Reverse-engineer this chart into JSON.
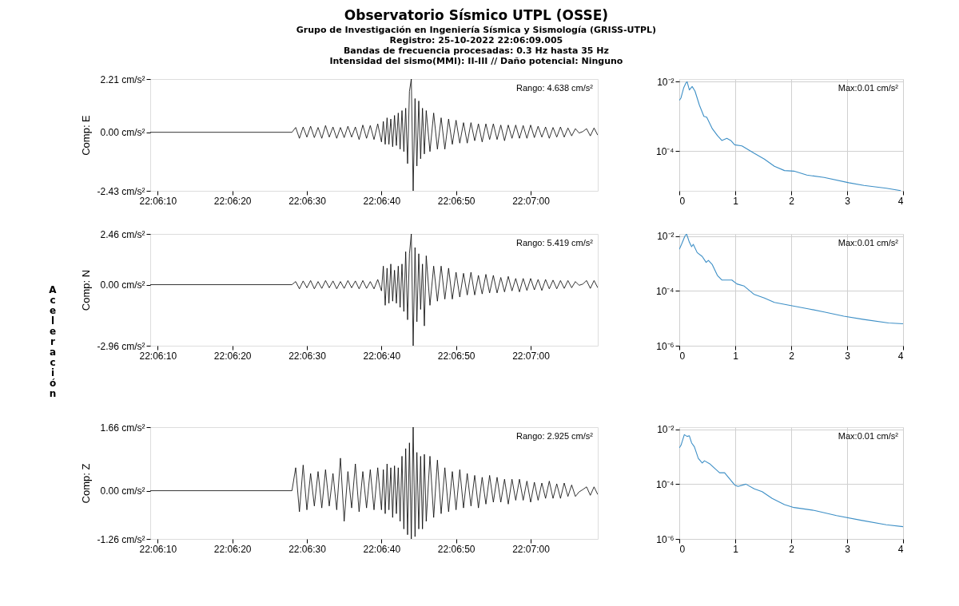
{
  "chart_data": [
    {
      "type": "line",
      "title": "Observatorio Sísmico UTPL (OSSE)",
      "subtitle": "Grupo de Investigación en Ingeniería Sísmica y Sismología (GRISS-UTPL)\nRegistro: 25-10-2022 22:06:09.005\nBandas de frecuencia procesadas: 0.3 Hz hasta 35 Hz\nIntensidad del sismo(MMI): II-III // Daño potencial: Ninguno",
      "ylabel": "Comp: E",
      "x": [
        "2022-10-25T22:06:09",
        "2022-10-25T22:06:28",
        "2022-10-25T22:06:28.5",
        "2022-10-25T22:06:29",
        "2022-10-25T22:06:29.5",
        "2022-10-25T22:06:30",
        "2022-10-25T22:06:30.5",
        "2022-10-25T22:06:31",
        "2022-10-25T22:06:31.5",
        "2022-10-25T22:06:32",
        "2022-10-25T22:06:32.5",
        "2022-10-25T22:06:33",
        "2022-10-25T22:06:33.5",
        "2022-10-25T22:06:34",
        "2022-10-25T22:06:34.5",
        "2022-10-25T22:06:35",
        "2022-10-25T22:06:35.5",
        "2022-10-25T22:06:36",
        "2022-10-25T22:06:36.5",
        "2022-10-25T22:06:37",
        "2022-10-25T22:06:37.5",
        "2022-10-25T22:06:38",
        "2022-10-25T22:06:38.5",
        "2022-10-25T22:06:39",
        "2022-10-25T22:06:39.5",
        "2022-10-25T22:06:40",
        "2022-10-25T22:06:40.25",
        "2022-10-25T22:06:40.5",
        "2022-10-25T22:06:40.75",
        "2022-10-25T22:06:41",
        "2022-10-25T22:06:41.25",
        "2022-10-25T22:06:41.5",
        "2022-10-25T22:06:41.75",
        "2022-10-25T22:06:42",
        "2022-10-25T22:06:42.25",
        "2022-10-25T22:06:42.5",
        "2022-10-25T22:06:42.75",
        "2022-10-25T22:06:43",
        "2022-10-25T22:06:43.25",
        "2022-10-25T22:06:43.5",
        "2022-10-25T22:06:43.75",
        "2022-10-25T22:06:44",
        "2022-10-25T22:06:44.25",
        "2022-10-25T22:06:44.5",
        "2022-10-25T22:06:44.75",
        "2022-10-25T22:06:45",
        "2022-10-25T22:06:45.25",
        "2022-10-25T22:06:45.5",
        "2022-10-25T22:06:45.75",
        "2022-10-25T22:06:46",
        "2022-10-25T22:06:46.5",
        "2022-10-25T22:06:47",
        "2022-10-25T22:06:47.5",
        "2022-10-25T22:06:48",
        "2022-10-25T22:06:48.5",
        "2022-10-25T22:06:49",
        "2022-10-25T22:06:49.5",
        "2022-10-25T22:06:50",
        "2022-10-25T22:06:50.5",
        "2022-10-25T22:06:51",
        "2022-10-25T22:06:51.5",
        "2022-10-25T22:06:52",
        "2022-10-25T22:06:52.5",
        "2022-10-25T22:06:53",
        "2022-10-25T22:06:53.5",
        "2022-10-25T22:06:54",
        "2022-10-25T22:06:54.5",
        "2022-10-25T22:06:55",
        "2022-10-25T22:06:55.5",
        "2022-10-25T22:06:56",
        "2022-10-25T22:06:56.5",
        "2022-10-25T22:06:57",
        "2022-10-25T22:06:57.5",
        "2022-10-25T22:06:58",
        "2022-10-25T22:06:58.5",
        "2022-10-25T22:06:59",
        "2022-10-25T22:06:59.5",
        "2022-10-25T22:07:00",
        "2022-10-25T22:07:00.5",
        "2022-10-25T22:07:01",
        "2022-10-25T22:07:01.5",
        "2022-10-25T22:07:02",
        "2022-10-25T22:07:02.5",
        "2022-10-25T22:07:03",
        "2022-10-25T22:07:03.5",
        "2022-10-25T22:07:04",
        "2022-10-25T22:07:04.5",
        "2022-10-25T22:07:05",
        "2022-10-25T22:07:05.5",
        "2022-10-25T22:07:06",
        "2022-10-25T22:07:06.5",
        "2022-10-25T22:07:07",
        "2022-10-25T22:07:07.5",
        "2022-10-25T22:07:08",
        "2022-10-25T22:07:08.5",
        "2022-10-25T22:07:09"
      ],
      "xlim": [
        "2022-10-25T22:06:09",
        "2022-10-25T22:07:09"
      ],
      "xticks": [
        {
          "value": "2022-10-25T22:06:10",
          "label": "22:06:10"
        },
        {
          "value": "2022-10-25T22:06:20",
          "label": "22:06:20"
        },
        {
          "value": "2022-10-25T22:06:30",
          "label": "22:06:30"
        },
        {
          "value": "2022-10-25T22:06:40",
          "label": "22:06:40"
        },
        {
          "value": "2022-10-25T22:06:50",
          "label": "22:06:50"
        },
        {
          "value": "2022-10-25T22:07:00",
          "label": "22:07:00"
        }
      ],
      "ylim": [
        -2.43,
        2.21
      ],
      "yticks": [
        {
          "value": -2.43,
          "label": "-2.43 cm/s²"
        },
        {
          "value": 0,
          "label": "0.00 cm/s²"
        },
        {
          "value": 2.21,
          "label": "2.21 cm/s²"
        }
      ],
      "series": [
        {
          "color": "#000000",
          "values": [
            0,
            0,
            0.2,
            -0.25,
            0.22,
            -0.2,
            0.25,
            -0.22,
            0.2,
            -0.25,
            0.28,
            -0.2,
            0.22,
            -0.25,
            0.2,
            -0.22,
            0.25,
            -0.2,
            0.22,
            -0.3,
            0.3,
            -0.25,
            0.28,
            -0.3,
            0.35,
            -0.4,
            0.45,
            -0.5,
            0.6,
            -0.5,
            0.55,
            -0.6,
            0.7,
            -0.55,
            0.8,
            -0.7,
            0.9,
            -0.8,
            1.0,
            -1.3,
            1.7,
            2.21,
            -2.43,
            1.4,
            -1.4,
            1.3,
            -1.1,
            1.0,
            -0.9,
            0.9,
            -0.8,
            0.8,
            -0.7,
            0.6,
            -0.7,
            0.55,
            -0.5,
            0.5,
            -0.45,
            0.4,
            -0.45,
            0.4,
            -0.35,
            0.35,
            -0.4,
            0.35,
            -0.3,
            0.35,
            -0.3,
            0.3,
            -0.35,
            0.3,
            -0.25,
            0.3,
            -0.25,
            0.28,
            -0.25,
            0.3,
            -0.22,
            0.25,
            -0.2,
            0.22,
            -0.25,
            0.2,
            -0.2,
            0.22,
            -0.2,
            0.18,
            -0.15,
            0.15,
            -0.03,
            0.03,
            0.15,
            -0.15,
            0.18,
            -0.12
          ]
        }
      ],
      "annotations": [
        "Rango: 4.638 cm/s²"
      ]
    },
    {
      "type": "line",
      "x": [
        0,
        0.03,
        0.08,
        0.12,
        0.14,
        0.18,
        0.23,
        0.28,
        0.36,
        0.44,
        0.49,
        0.59,
        0.68,
        0.76,
        0.85,
        0.92,
        0.99,
        1.12,
        1.34,
        1.52,
        1.7,
        1.88,
        2.05,
        2.28,
        2.59,
        3.03,
        3.3,
        3.7,
        3.96
      ],
      "xlim": [
        0,
        4
      ],
      "xticks": [
        0,
        1,
        2,
        3,
        4
      ],
      "ylim": [
        7e-06,
        0.012
      ],
      "yticks": [
        {
          "value": 0.01,
          "label": "10⁻²"
        },
        {
          "value": 0.0001,
          "label": "10⁻⁴"
        }
      ],
      "log": true,
      "grid": true,
      "series": [
        {
          "color": "#3d8fc6",
          "values": [
            0.0029,
            0.0034,
            0.0068,
            0.0093,
            0.01,
            0.0058,
            0.0073,
            0.0054,
            0.0021,
            0.001,
            0.00095,
            0.00044,
            0.00028,
            0.0002,
            0.00023,
            0.0002,
            0.00015,
            0.00014,
            8.5e-05,
            5.8e-05,
            3.6e-05,
            2.7e-05,
            2.6e-05,
            2e-05,
            1.7e-05,
            1.2e-05,
            1e-05,
            8.3e-06,
            7.1e-06
          ]
        }
      ],
      "annotations": [
        "Max:0.01 cm/s²"
      ]
    },
    {
      "type": "line",
      "ylabel": "Comp: N",
      "x": [
        "2022-10-25T22:06:09",
        "2022-10-25T22:06:28",
        "2022-10-25T22:06:28.5",
        "2022-10-25T22:06:29",
        "2022-10-25T22:06:29.5",
        "2022-10-25T22:06:30",
        "2022-10-25T22:06:30.5",
        "2022-10-25T22:06:31",
        "2022-10-25T22:06:31.5",
        "2022-10-25T22:06:32",
        "2022-10-25T22:06:32.5",
        "2022-10-25T22:06:33",
        "2022-10-25T22:06:33.5",
        "2022-10-25T22:06:34",
        "2022-10-25T22:06:34.5",
        "2022-10-25T22:06:35",
        "2022-10-25T22:06:35.5",
        "2022-10-25T22:06:36",
        "2022-10-25T22:06:36.5",
        "2022-10-25T22:06:37",
        "2022-10-25T22:06:37.5",
        "2022-10-25T22:06:38",
        "2022-10-25T22:06:38.5",
        "2022-10-25T22:06:39",
        "2022-10-25T22:06:39.5",
        "2022-10-25T22:06:40",
        "2022-10-25T22:06:40.25",
        "2022-10-25T22:06:40.5",
        "2022-10-25T22:06:40.75",
        "2022-10-25T22:06:41",
        "2022-10-25T22:06:41.25",
        "2022-10-25T22:06:41.5",
        "2022-10-25T22:06:41.75",
        "2022-10-25T22:06:42",
        "2022-10-25T22:06:42.25",
        "2022-10-25T22:06:42.5",
        "2022-10-25T22:06:42.75",
        "2022-10-25T22:06:43",
        "2022-10-25T22:06:43.25",
        "2022-10-25T22:06:43.5",
        "2022-10-25T22:06:43.75",
        "2022-10-25T22:06:44",
        "2022-10-25T22:06:44.25",
        "2022-10-25T22:06:44.5",
        "2022-10-25T22:06:44.75",
        "2022-10-25T22:06:45",
        "2022-10-25T22:06:45.25",
        "2022-10-25T22:06:45.5",
        "2022-10-25T22:06:45.75",
        "2022-10-25T22:06:46",
        "2022-10-25T22:06:46.5",
        "2022-10-25T22:06:47",
        "2022-10-25T22:06:47.5",
        "2022-10-25T22:06:48",
        "2022-10-25T22:06:48.5",
        "2022-10-25T22:06:49",
        "2022-10-25T22:06:49.5",
        "2022-10-25T22:06:50",
        "2022-10-25T22:06:50.5",
        "2022-10-25T22:06:51",
        "2022-10-25T22:06:51.5",
        "2022-10-25T22:06:52",
        "2022-10-25T22:06:52.5",
        "2022-10-25T22:06:53",
        "2022-10-25T22:06:53.5",
        "2022-10-25T22:06:54",
        "2022-10-25T22:06:54.5",
        "2022-10-25T22:06:55",
        "2022-10-25T22:06:55.5",
        "2022-10-25T22:06:56",
        "2022-10-25T22:06:56.5",
        "2022-10-25T22:06:57",
        "2022-10-25T22:06:57.5",
        "2022-10-25T22:06:58",
        "2022-10-25T22:06:58.5",
        "2022-10-25T22:06:59",
        "2022-10-25T22:06:59.5",
        "2022-10-25T22:07:00",
        "2022-10-25T22:07:00.5",
        "2022-10-25T22:07:01",
        "2022-10-25T22:07:01.5",
        "2022-10-25T22:07:02",
        "2022-10-25T22:07:02.5",
        "2022-10-25T22:07:03",
        "2022-10-25T22:07:03.5",
        "2022-10-25T22:07:04",
        "2022-10-25T22:07:04.5",
        "2022-10-25T22:07:05",
        "2022-10-25T22:07:05.5",
        "2022-10-25T22:07:06",
        "2022-10-25T22:07:06.5",
        "2022-10-25T22:07:07",
        "2022-10-25T22:07:07.5",
        "2022-10-25T22:07:08",
        "2022-10-25T22:07:08.5",
        "2022-10-25T22:07:09"
      ],
      "xlim": [
        "2022-10-25T22:06:09",
        "2022-10-25T22:07:09"
      ],
      "xticks": [
        {
          "value": "2022-10-25T22:06:10",
          "label": "22:06:10"
        },
        {
          "value": "2022-10-25T22:06:20",
          "label": "22:06:20"
        },
        {
          "value": "2022-10-25T22:06:30",
          "label": "22:06:30"
        },
        {
          "value": "2022-10-25T22:06:40",
          "label": "22:06:40"
        },
        {
          "value": "2022-10-25T22:06:50",
          "label": "22:06:50"
        },
        {
          "value": "2022-10-25T22:07:00",
          "label": "22:07:00"
        }
      ],
      "ylim": [
        -2.96,
        2.46
      ],
      "yticks": [
        {
          "value": -2.96,
          "label": "-2.96 cm/s²"
        },
        {
          "value": 0,
          "label": "0.00 cm/s²"
        },
        {
          "value": 2.46,
          "label": "2.46 cm/s²"
        }
      ],
      "series": [
        {
          "color": "#000000",
          "values": [
            0,
            0,
            0.15,
            -0.2,
            0.18,
            -0.15,
            0.2,
            -0.2,
            0.15,
            -0.18,
            0.2,
            -0.15,
            0.18,
            -0.2,
            0.15,
            -0.18,
            0.2,
            -0.15,
            0.18,
            -0.2,
            0.2,
            -0.18,
            0.15,
            -0.2,
            0.25,
            -0.3,
            0.9,
            -1.0,
            0.8,
            -0.9,
            1.0,
            -0.8,
            0.7,
            -0.9,
            0.9,
            -1.1,
            1.0,
            -1.3,
            1.6,
            -1.7,
            1.5,
            2.46,
            -2.96,
            1.8,
            -1.8,
            1.5,
            -1.2,
            1.0,
            -2.0,
            1.4,
            -1.0,
            0.9,
            -0.8,
            0.9,
            -0.7,
            0.8,
            -0.7,
            0.6,
            -0.6,
            0.55,
            -0.5,
            0.6,
            -0.5,
            0.45,
            -0.45,
            0.5,
            -0.4,
            0.45,
            -0.4,
            0.35,
            -0.35,
            0.4,
            -0.3,
            0.3,
            -0.35,
            0.3,
            -0.28,
            0.3,
            -0.25,
            0.25,
            -0.28,
            0.25,
            -0.2,
            0.22,
            -0.2,
            0.2,
            -0.18,
            0.2,
            -0.15,
            0.15,
            -0.03,
            0.03,
            0.2,
            -0.18,
            0.2,
            -0.15
          ]
        }
      ],
      "annotations": [
        "Rango: 5.419 cm/s²",
        "Aceleración"
      ]
    },
    {
      "type": "line",
      "x": [
        0,
        0.04,
        0.1,
        0.13,
        0.18,
        0.22,
        0.25,
        0.32,
        0.41,
        0.48,
        0.52,
        0.59,
        0.68,
        0.76,
        0.94,
        1.03,
        1.16,
        1.34,
        1.52,
        1.7,
        1.96,
        2.32,
        2.59,
        2.94,
        3.3,
        3.74,
        4.0
      ],
      "xlim": [
        0,
        4
      ],
      "xticks": [
        0,
        1,
        2,
        3,
        4
      ],
      "ylim": [
        1e-06,
        0.012
      ],
      "yticks": [
        {
          "value": 0.01,
          "label": "10⁻²"
        },
        {
          "value": 0.0001,
          "label": "10⁻⁴"
        },
        {
          "value": 1e-06,
          "label": "10⁻⁶"
        }
      ],
      "log": true,
      "grid": true,
      "series": [
        {
          "color": "#3d8fc6",
          "values": [
            0.0033,
            0.005,
            0.01,
            0.012,
            0.006,
            0.0041,
            0.005,
            0.0025,
            0.0018,
            0.0011,
            0.0013,
            0.00091,
            0.00037,
            0.00025,
            0.00025,
            0.00018,
            0.00015,
            7.4e-05,
            5.5e-05,
            3.8e-05,
            3e-05,
            2.2e-05,
            1.7e-05,
            1.2e-05,
            9.1e-06,
            6.8e-06,
            6.3e-06
          ]
        }
      ],
      "annotations": [
        "Max:0.01 cm/s²"
      ]
    },
    {
      "type": "line",
      "ylabel": "Comp: Z",
      "x": [
        "2022-10-25T22:06:09",
        "2022-10-25T22:06:28",
        "2022-10-25T22:06:28.5",
        "2022-10-25T22:06:29",
        "2022-10-25T22:06:29.5",
        "2022-10-25T22:06:30",
        "2022-10-25T22:06:30.5",
        "2022-10-25T22:06:31",
        "2022-10-25T22:06:31.5",
        "2022-10-25T22:06:32",
        "2022-10-25T22:06:32.5",
        "2022-10-25T22:06:33",
        "2022-10-25T22:06:33.5",
        "2022-10-25T22:06:34",
        "2022-10-25T22:06:34.5",
        "2022-10-25T22:06:35",
        "2022-10-25T22:06:35.5",
        "2022-10-25T22:06:36",
        "2022-10-25T22:06:36.5",
        "2022-10-25T22:06:37",
        "2022-10-25T22:06:37.5",
        "2022-10-25T22:06:38",
        "2022-10-25T22:06:38.5",
        "2022-10-25T22:06:39",
        "2022-10-25T22:06:39.5",
        "2022-10-25T22:06:40",
        "2022-10-25T22:06:40.25",
        "2022-10-25T22:06:40.5",
        "2022-10-25T22:06:40.75",
        "2022-10-25T22:06:41",
        "2022-10-25T22:06:41.25",
        "2022-10-25T22:06:41.5",
        "2022-10-25T22:06:41.75",
        "2022-10-25T22:06:42",
        "2022-10-25T22:06:42.25",
        "2022-10-25T22:06:42.5",
        "2022-10-25T22:06:42.75",
        "2022-10-25T22:06:43",
        "2022-10-25T22:06:43.25",
        "2022-10-25T22:06:43.5",
        "2022-10-25T22:06:43.75",
        "2022-10-25T22:06:44",
        "2022-10-25T22:06:44.25",
        "2022-10-25T22:06:44.5",
        "2022-10-25T22:06:44.75",
        "2022-10-25T22:06:45",
        "2022-10-25T22:06:45.25",
        "2022-10-25T22:06:45.5",
        "2022-10-25T22:06:45.75",
        "2022-10-25T22:06:46",
        "2022-10-25T22:06:46.5",
        "2022-10-25T22:06:47",
        "2022-10-25T22:06:47.5",
        "2022-10-25T22:06:48",
        "2022-10-25T22:06:48.5",
        "2022-10-25T22:06:49",
        "2022-10-25T22:06:49.5",
        "2022-10-25T22:06:50",
        "2022-10-25T22:06:50.5",
        "2022-10-25T22:06:51",
        "2022-10-25T22:06:51.5",
        "2022-10-25T22:06:52",
        "2022-10-25T22:06:52.5",
        "2022-10-25T22:06:53",
        "2022-10-25T22:06:53.5",
        "2022-10-25T22:06:54",
        "2022-10-25T22:06:54.5",
        "2022-10-25T22:06:55",
        "2022-10-25T22:06:55.5",
        "2022-10-25T22:06:56",
        "2022-10-25T22:06:56.5",
        "2022-10-25T22:06:57",
        "2022-10-25T22:06:57.5",
        "2022-10-25T22:06:58",
        "2022-10-25T22:06:58.5",
        "2022-10-25T22:06:59",
        "2022-10-25T22:06:59.5",
        "2022-10-25T22:07:00",
        "2022-10-25T22:07:00.5",
        "2022-10-25T22:07:01",
        "2022-10-25T22:07:01.5",
        "2022-10-25T22:07:02",
        "2022-10-25T22:07:02.5",
        "2022-10-25T22:07:03",
        "2022-10-25T22:07:03.5",
        "2022-10-25T22:07:04",
        "2022-10-25T22:07:04.5",
        "2022-10-25T22:07:05",
        "2022-10-25T22:07:05.5",
        "2022-10-25T22:07:06",
        "2022-10-25T22:07:06.5",
        "2022-10-25T22:07:07",
        "2022-10-25T22:07:07.5",
        "2022-10-25T22:07:08",
        "2022-10-25T22:07:08.5",
        "2022-10-25T22:07:09"
      ],
      "xlim": [
        "2022-10-25T22:06:09",
        "2022-10-25T22:07:09"
      ],
      "xticks": [
        {
          "value": "2022-10-25T22:06:10",
          "label": "22:06:10"
        },
        {
          "value": "2022-10-25T22:06:20",
          "label": "22:06:20"
        },
        {
          "value": "2022-10-25T22:06:30",
          "label": "22:06:30"
        },
        {
          "value": "2022-10-25T22:06:40",
          "label": "22:06:40"
        },
        {
          "value": "2022-10-25T22:06:50",
          "label": "22:06:50"
        },
        {
          "value": "2022-10-25T22:07:00",
          "label": "22:07:00"
        }
      ],
      "ylim": [
        -1.26,
        1.66
      ],
      "yticks": [
        {
          "value": -1.26,
          "label": "-1.26 cm/s²"
        },
        {
          "value": 0,
          "label": "0.00 cm/s²"
        },
        {
          "value": 1.66,
          "label": "1.66 cm/s²"
        }
      ],
      "series": [
        {
          "color": "#000000",
          "values": [
            0,
            0,
            0.6,
            -0.55,
            0.67,
            -0.5,
            0.45,
            -0.4,
            0.5,
            -0.45,
            0.55,
            -0.4,
            0.45,
            -0.5,
            0.85,
            -0.8,
            0.5,
            -0.45,
            0.7,
            -0.55,
            0.5,
            -0.45,
            0.55,
            -0.5,
            0.6,
            -0.5,
            0.55,
            -0.6,
            0.7,
            -0.5,
            0.6,
            -0.7,
            0.65,
            -0.6,
            0.6,
            -0.8,
            0.9,
            -1.0,
            1.1,
            -1.15,
            1.25,
            -1.26,
            1.66,
            -1.2,
            1.0,
            -1.0,
            0.9,
            -1.0,
            0.95,
            -0.8,
            0.9,
            -0.7,
            0.8,
            -0.6,
            0.6,
            -0.55,
            0.5,
            -0.5,
            0.55,
            -0.45,
            0.45,
            -0.4,
            0.4,
            -0.45,
            0.35,
            -0.35,
            0.4,
            -0.3,
            0.35,
            -0.3,
            0.3,
            -0.35,
            0.3,
            -0.25,
            0.3,
            -0.25,
            0.25,
            -0.3,
            0.22,
            -0.25,
            0.2,
            -0.2,
            0.25,
            -0.2,
            0.18,
            -0.2,
            0.2,
            -0.15,
            0.15,
            -0.15,
            -0.03,
            0.03,
            0.1,
            -0.12,
            0.1,
            -0.1
          ]
        }
      ],
      "annotations": [
        "Rango: 2.925 cm/s²"
      ]
    },
    {
      "type": "line",
      "x": [
        0,
        0.03,
        0.09,
        0.14,
        0.18,
        0.22,
        0.27,
        0.34,
        0.41,
        0.45,
        0.54,
        0.72,
        0.81,
        0.99,
        1.05,
        1.19,
        1.34,
        1.48,
        1.66,
        1.88,
        2.05,
        2.41,
        2.81,
        3.25,
        3.7,
        4.0
      ],
      "xlim": [
        0,
        4
      ],
      "xticks": [
        0,
        1,
        2,
        3,
        4
      ],
      "ylim": [
        1e-06,
        0.012
      ],
      "yticks": [
        {
          "value": 0.01,
          "label": "10⁻²"
        },
        {
          "value": 0.0001,
          "label": "10⁻⁴"
        },
        {
          "value": 1e-06,
          "label": "10⁻⁶"
        }
      ],
      "log": true,
      "grid": true,
      "series": [
        {
          "color": "#3d8fc6",
          "values": [
            0.0021,
            0.0026,
            0.0064,
            0.0055,
            0.0058,
            0.0032,
            0.0023,
            0.00087,
            0.00059,
            0.00071,
            0.00056,
            0.00026,
            0.00026,
            9.3e-05,
            8.2e-05,
            0.0001,
            6.7e-05,
            5.3e-05,
            3e-05,
            1.8e-05,
            1.4e-05,
            1.1e-05,
            7.1e-06,
            4.8e-06,
            3.3e-06,
            2.8e-06
          ]
        }
      ],
      "annotations": [
        "Max:0.01 cm/s²"
      ]
    }
  ]
}
